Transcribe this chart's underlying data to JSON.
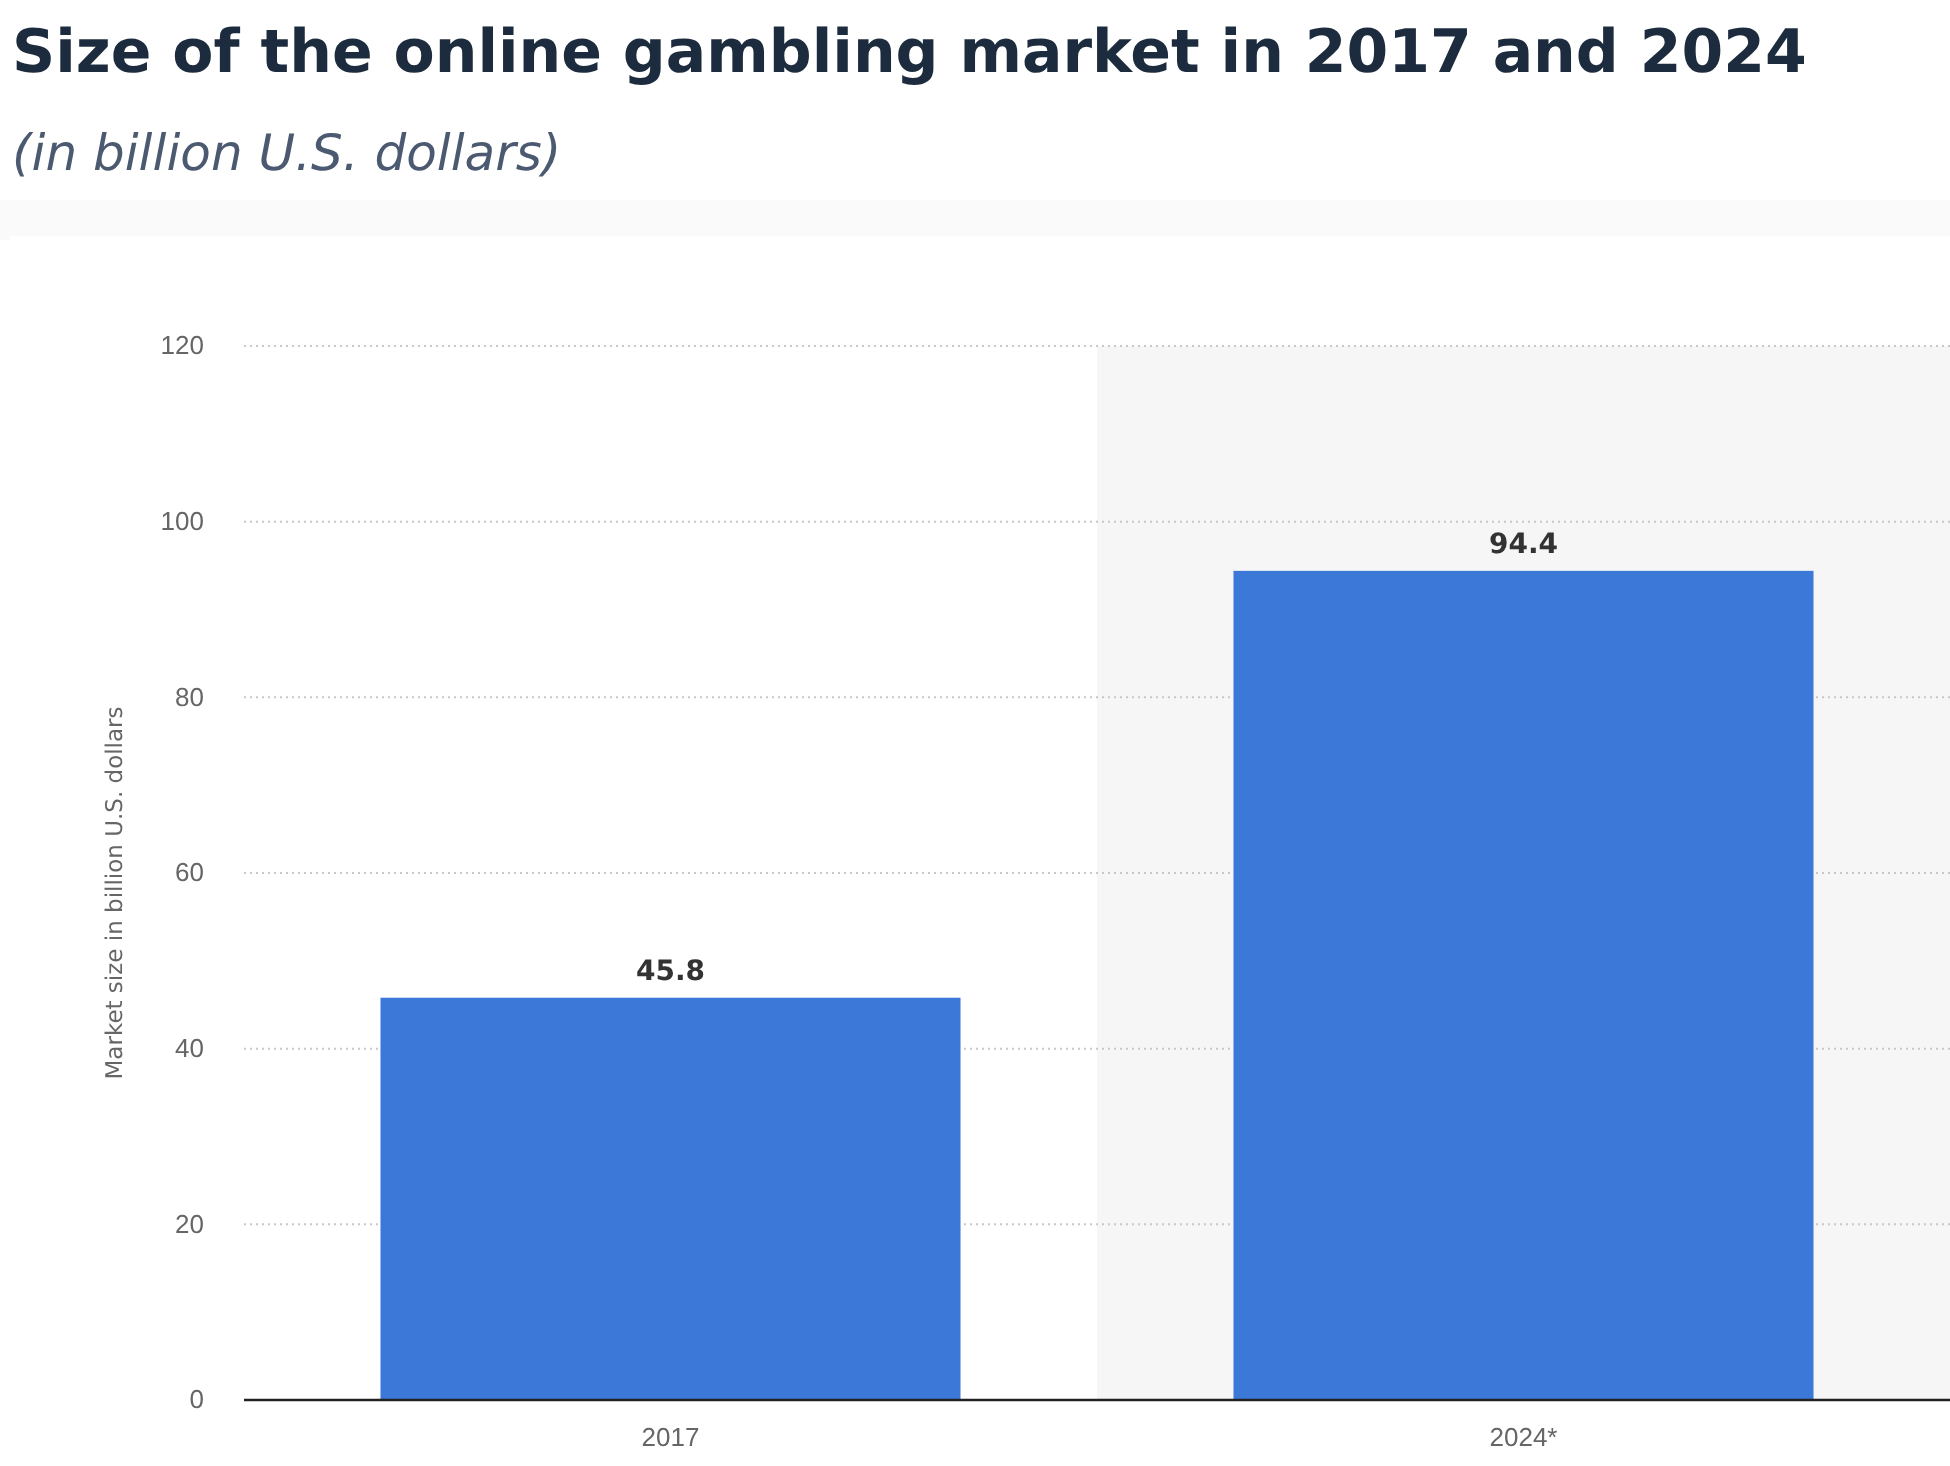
{
  "chart_data": {
    "type": "bar",
    "title": "Size of the online gambling market in 2017 and 2024",
    "subtitle": "(in billion U.S. dollars)",
    "ylabel": "Market size in billion U.S. dollars",
    "categories": [
      "2017",
      "2024*"
    ],
    "values": [
      45.8,
      94.4
    ],
    "color": "#3c78d8",
    "data_labels": true,
    "ylim": [
      0,
      120
    ],
    "yticks": [
      0,
      20,
      40,
      60,
      80,
      100,
      120
    ],
    "grid": "y",
    "bands": [
      {
        "axis": "x",
        "from": "2024*",
        "to": "2024*",
        "color": "#f6f6f7"
      }
    ]
  }
}
